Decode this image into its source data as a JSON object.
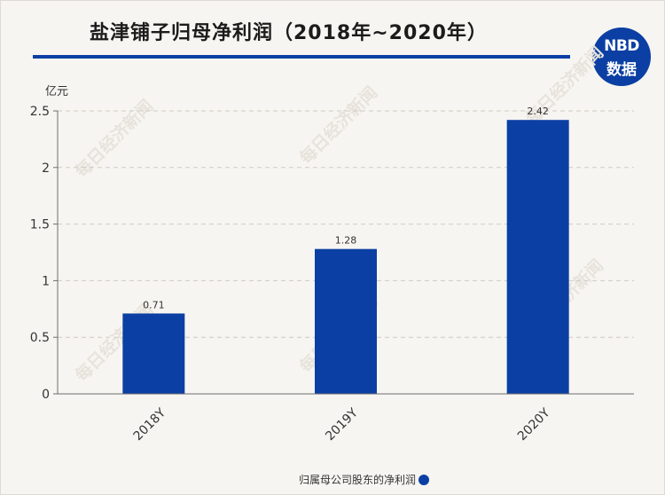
{
  "title": "盐津铺子归母净利润（2018年~2020年）",
  "logo": {
    "line1": "NBD",
    "line2": "数据"
  },
  "watermark": "每日经济新闻",
  "colors": {
    "bar": "#0b3fa3",
    "background": "#f7f5f1",
    "title_rule": "#0b3fa3"
  },
  "chart_data": {
    "type": "bar",
    "unit_label": "亿元",
    "categories": [
      "2018Y",
      "2019Y",
      "2020Y"
    ],
    "series": [
      {
        "name": "归属母公司股东的净利润",
        "values": [
          0.71,
          1.28,
          2.42
        ],
        "labels": [
          "0.71",
          "1.28",
          "2.42"
        ]
      }
    ],
    "yticks": [
      "0",
      "0.5",
      "1",
      "1.5",
      "2",
      "2.5"
    ],
    "ylim": [
      0,
      2.5
    ],
    "grid": true,
    "legend": "bottom-center"
  }
}
